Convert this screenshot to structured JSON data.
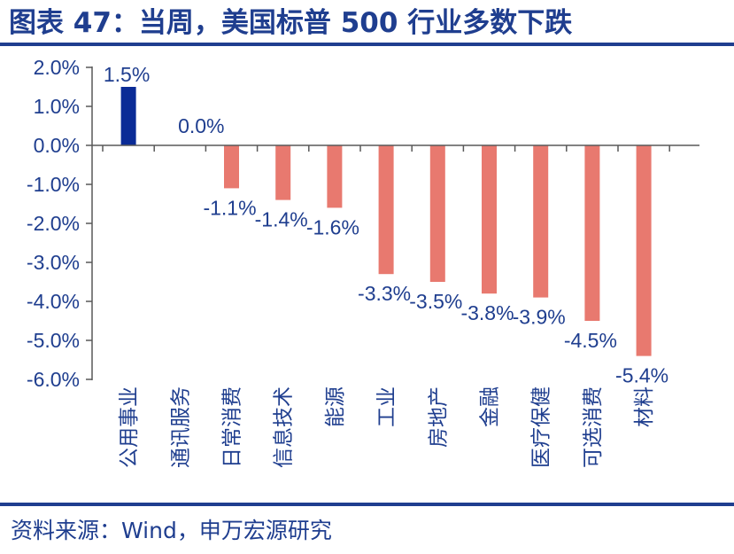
{
  "title": "图表 47：当周，美国标普 500 行业多数下跌",
  "source": "资料来源：Wind，申万宏源研究",
  "chart_data": {
    "type": "bar",
    "categories": [
      "公用事业",
      "通讯服务",
      "日常消费",
      "信息技术",
      "能源",
      "工业",
      "房地产",
      "金融",
      "医疗保健",
      "可选消费",
      "材料"
    ],
    "values": [
      1.5,
      0.0,
      -1.1,
      -1.4,
      -1.6,
      -3.3,
      -3.5,
      -3.8,
      -3.9,
      -4.5,
      -5.4
    ],
    "data_labels": [
      "1.5%",
      "0.0%",
      "-1.1%",
      "-1.4%",
      "-1.6%",
      "-3.3%",
      "-3.5%",
      "-3.8%",
      "-3.9%",
      "-4.5%",
      "-5.4%"
    ],
    "ylim": [
      -6.0,
      2.0
    ],
    "yticks": [
      2.0,
      1.0,
      0.0,
      -1.0,
      -2.0,
      -3.0,
      -4.0,
      -5.0,
      -6.0
    ],
    "ytick_labels": [
      "2.0%",
      "1.0%",
      "0.0%",
      "-1.0%",
      "-2.0%",
      "-3.0%",
      "-4.0%",
      "-5.0%",
      "-6.0%"
    ],
    "xlabel": "",
    "ylabel": "",
    "grid": false,
    "legend": "none",
    "colors": {
      "positive": "#0a2b96",
      "negative": "#e8796f",
      "axis": "#595959",
      "text": "#1f3e8f"
    }
  }
}
